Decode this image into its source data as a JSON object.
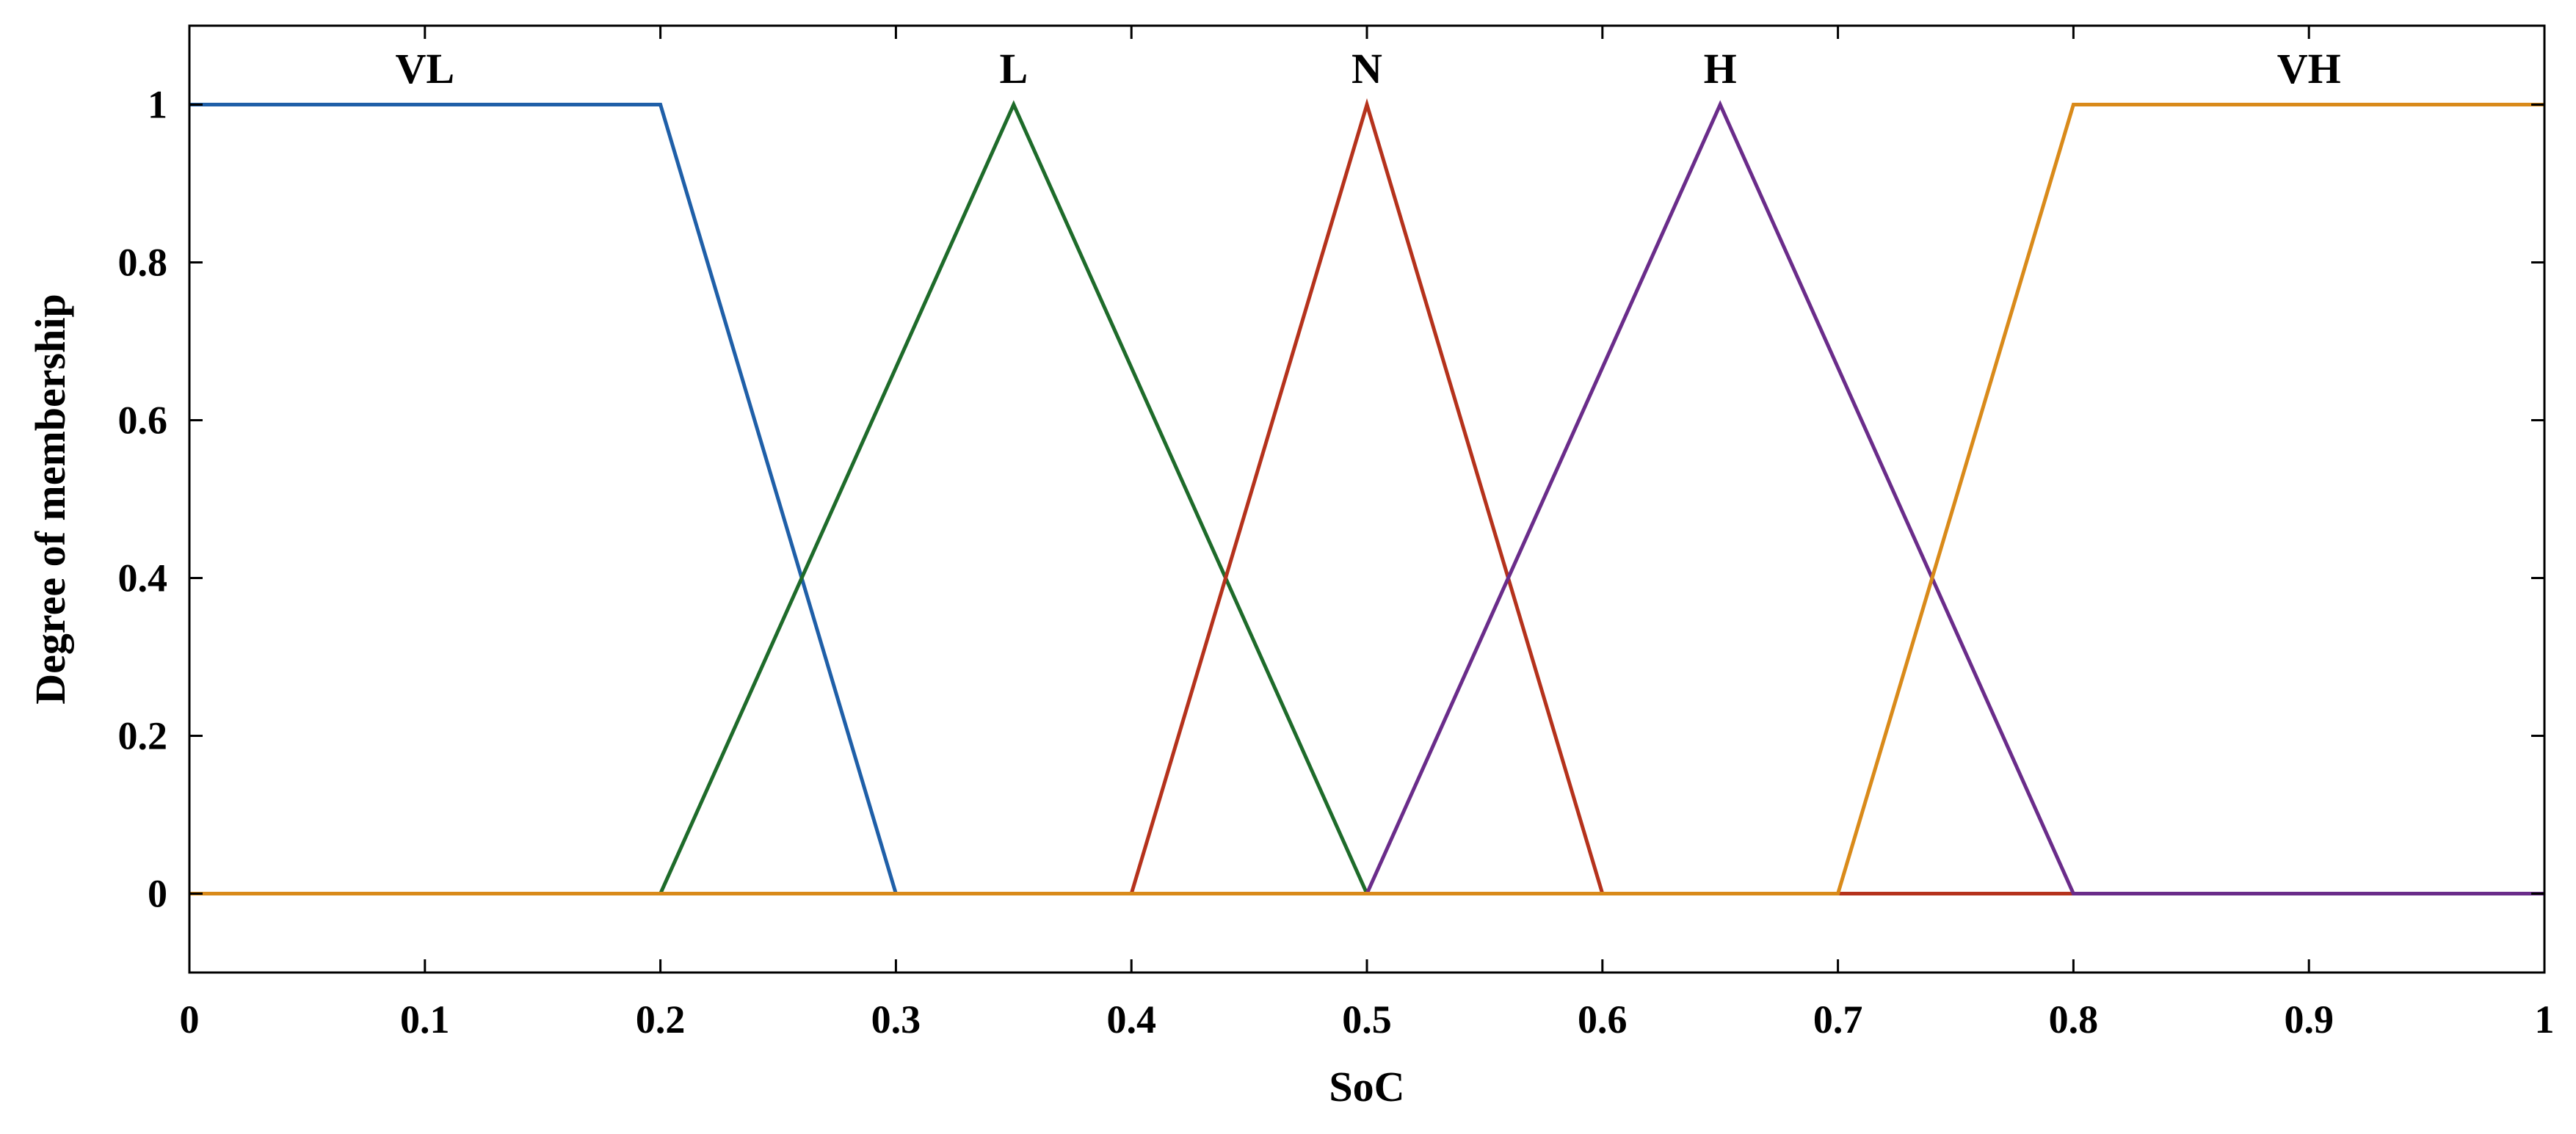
{
  "chart_data": {
    "type": "line",
    "title": "",
    "xlabel": "SoC",
    "ylabel": "Degree of membership",
    "xlim": [
      0,
      1
    ],
    "ylim": [
      -0.1,
      1.1
    ],
    "xticks": [
      0,
      0.1,
      0.2,
      0.3,
      0.4,
      0.5,
      0.6,
      0.7,
      0.8,
      0.9,
      1
    ],
    "xtick_labels": [
      "0",
      "0.1",
      "0.2",
      "0.3",
      "0.4",
      "0.5",
      "0.6",
      "0.7",
      "0.8",
      "0.9",
      "1"
    ],
    "yticks": [
      0,
      0.2,
      0.4,
      0.6,
      0.8,
      1
    ],
    "ytick_labels": [
      "0",
      "0.2",
      "0.4",
      "0.6",
      "0.8",
      "1"
    ],
    "grid": false,
    "series": [
      {
        "name": "VL",
        "color": "#1f5fa8",
        "label_x": 0.1,
        "points": [
          [
            0,
            1
          ],
          [
            0.2,
            1
          ],
          [
            0.3,
            0
          ],
          [
            1,
            0
          ]
        ]
      },
      {
        "name": "L",
        "color": "#1e6b2a",
        "label_x": 0.35,
        "points": [
          [
            0,
            0
          ],
          [
            0.2,
            0
          ],
          [
            0.35,
            1
          ],
          [
            0.5,
            0
          ],
          [
            1,
            0
          ]
        ]
      },
      {
        "name": "N",
        "color": "#b5321c",
        "label_x": 0.5,
        "points": [
          [
            0,
            0
          ],
          [
            0.4,
            0
          ],
          [
            0.5,
            1
          ],
          [
            0.6,
            0
          ],
          [
            1,
            0
          ]
        ]
      },
      {
        "name": "H",
        "color": "#6a2c8a",
        "label_x": 0.65,
        "points": [
          [
            0,
            0
          ],
          [
            0.5,
            0
          ],
          [
            0.65,
            1
          ],
          [
            0.8,
            0
          ],
          [
            1,
            0
          ]
        ]
      },
      {
        "name": "VH",
        "color": "#d98a1a",
        "label_x": 0.9,
        "points": [
          [
            0,
            0
          ],
          [
            0.7,
            0
          ],
          [
            0.8,
            1
          ],
          [
            1,
            1
          ]
        ]
      }
    ]
  }
}
